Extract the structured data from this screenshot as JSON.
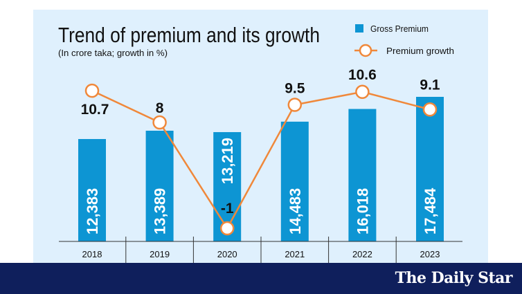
{
  "chart_data": {
    "type": "bar",
    "title": "Trend of premium and its growth",
    "subtitle": "(In crore taka; growth in %)",
    "categories": [
      "2018",
      "2019",
      "2020",
      "2021",
      "2022",
      "2023"
    ],
    "series": [
      {
        "name": "Gross Premium",
        "type": "bar",
        "values": [
          12383,
          13389,
          13219,
          14483,
          16018,
          17484
        ],
        "labels": [
          "12,383",
          "13,389",
          "13,219",
          "14,483",
          "16,018",
          "17,484"
        ],
        "color": "#0d95d3"
      },
      {
        "name": "Premium growth",
        "type": "line",
        "values": [
          10.7,
          8,
          -1,
          9.5,
          10.6,
          9.1
        ],
        "labels": [
          "10.7",
          "8",
          "-1",
          "9.5",
          "10.6",
          "9.1"
        ],
        "color": "#f0883a"
      }
    ],
    "legend": "top-right",
    "grid": false
  },
  "branding": {
    "logo": "The Daily Star"
  },
  "colors": {
    "panel": "#dff0fd",
    "band": "#0f1f5c"
  }
}
